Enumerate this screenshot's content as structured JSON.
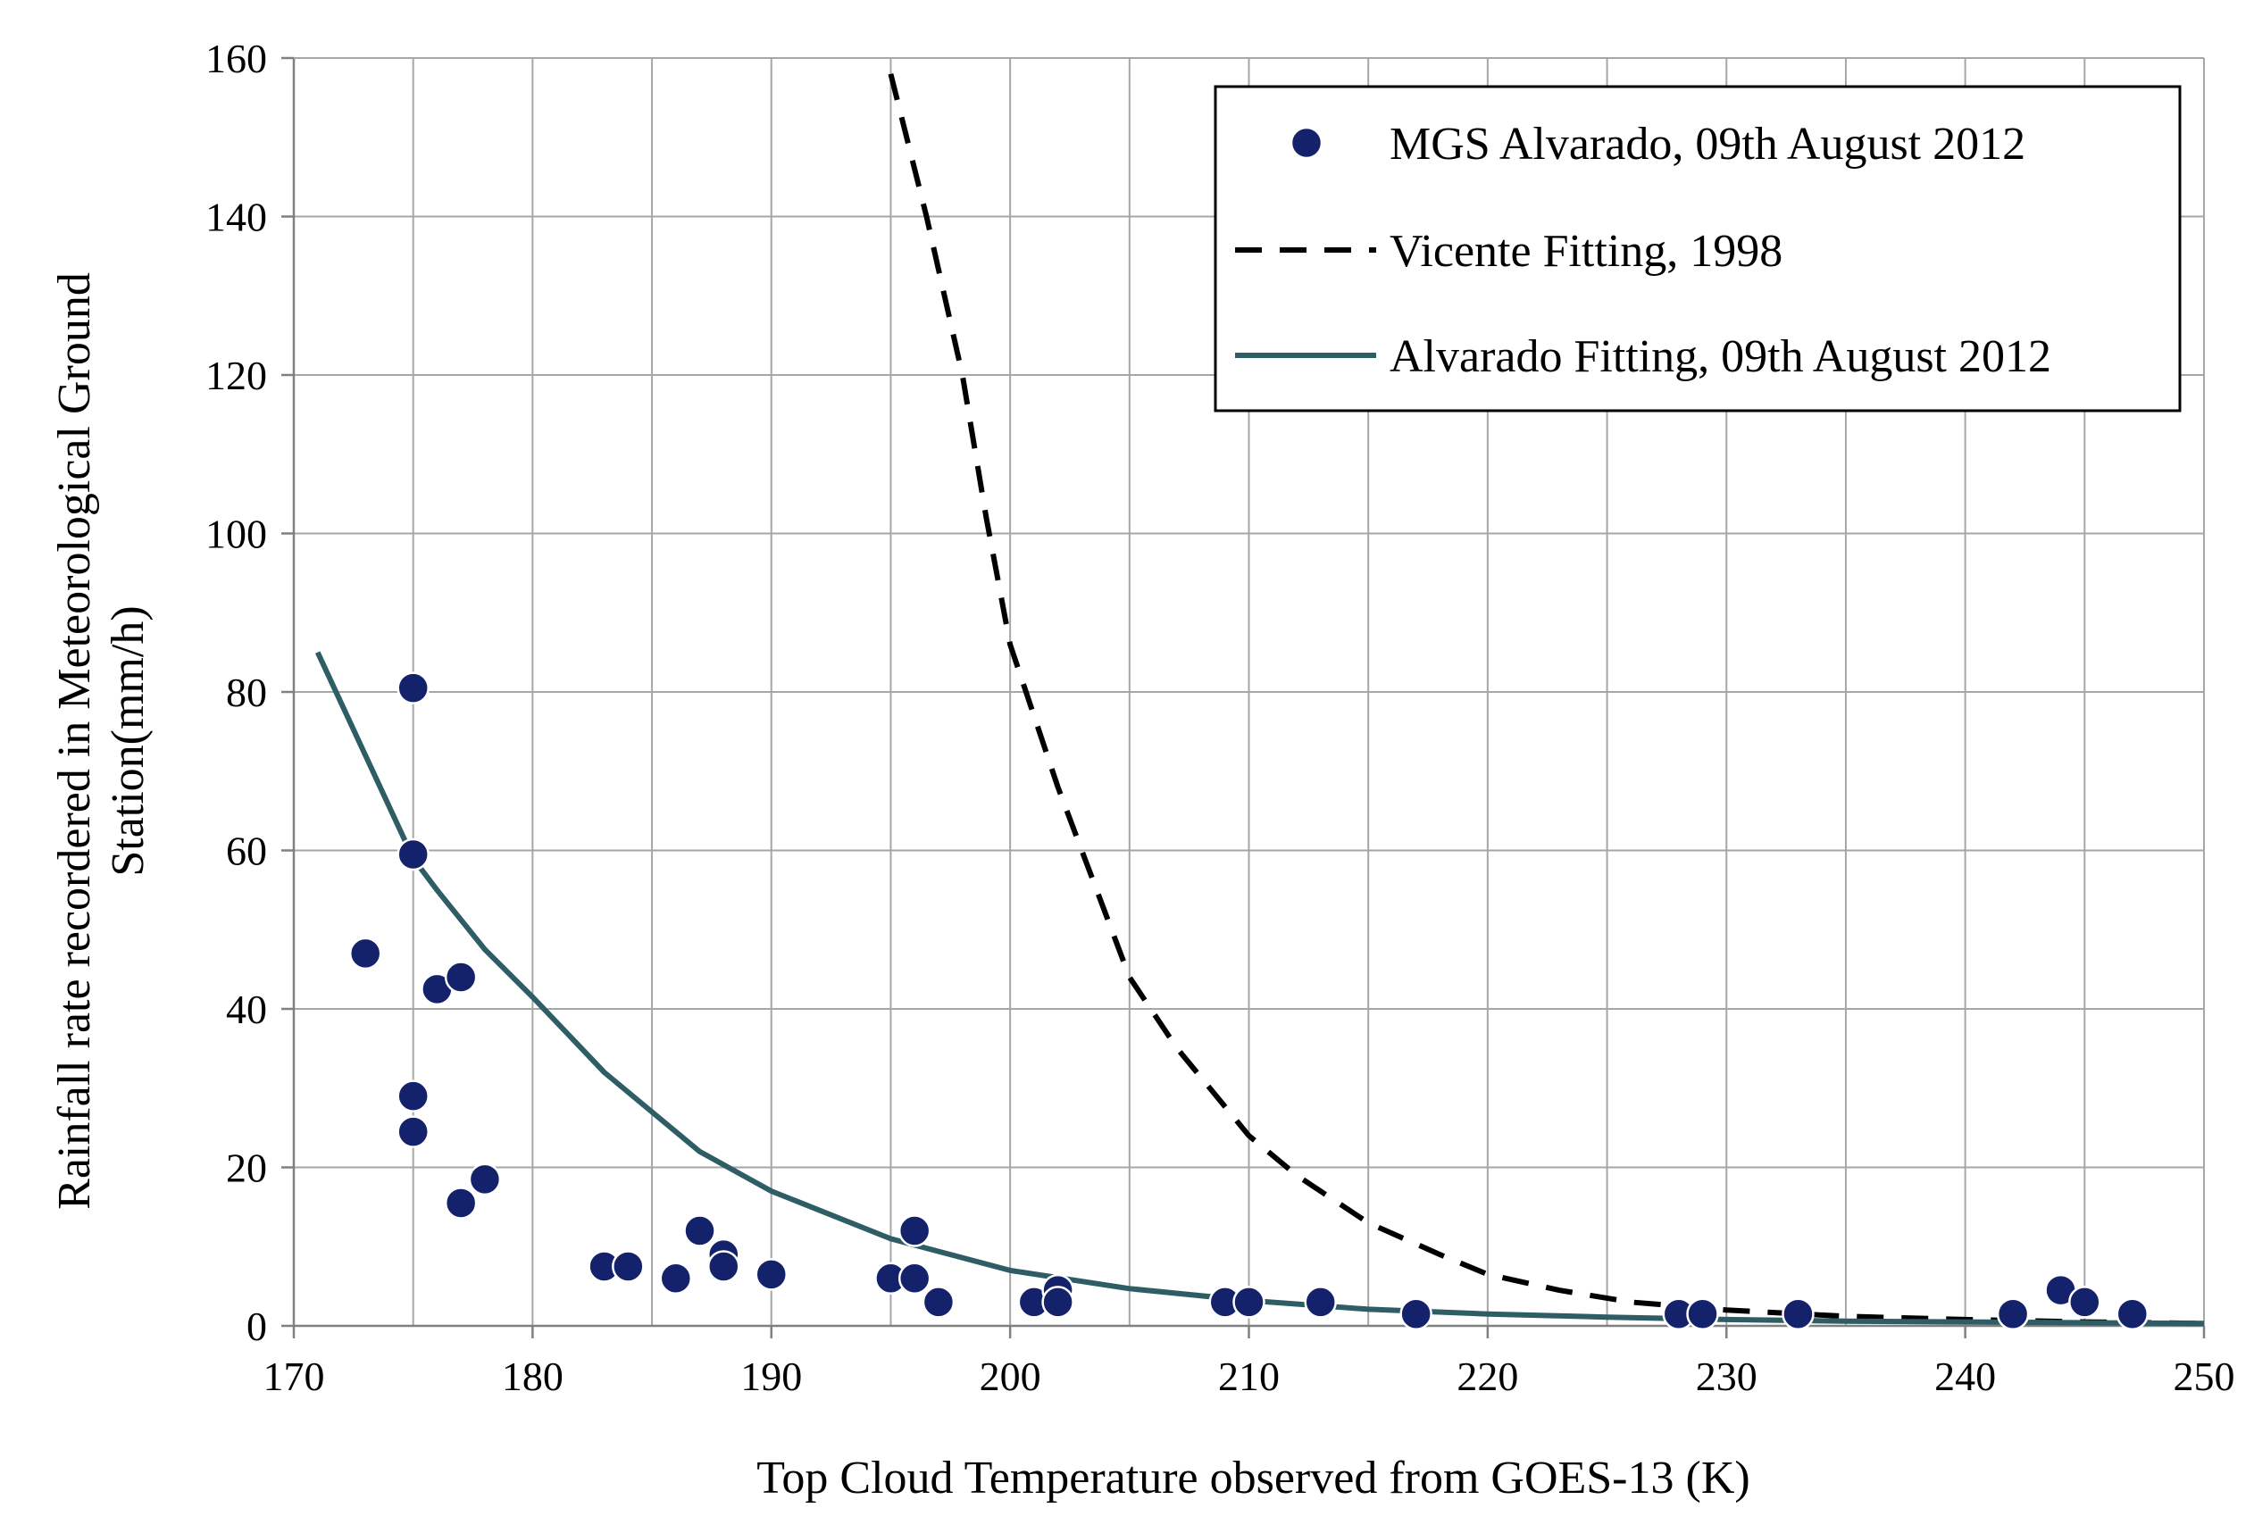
{
  "chart_data": {
    "type": "scatter",
    "xlabel": "Top Cloud Temperature  observed from GOES-13  (K)",
    "ylabel_lines": [
      "Rainfall rate recordered in  Meteorological Ground",
      "Station(mm/h)"
    ],
    "xlim": [
      170,
      250
    ],
    "ylim": [
      0,
      160
    ],
    "x_ticks": [
      170,
      180,
      190,
      200,
      210,
      220,
      230,
      240,
      250
    ],
    "y_ticks": [
      0,
      20,
      40,
      60,
      80,
      100,
      120,
      140,
      160
    ],
    "x_minor_step": 5,
    "grid": true,
    "legend_position": "top-right",
    "series": [
      {
        "name": "MGS Alvarado, 09th August 2012",
        "kind": "scatter",
        "color": "#14216b",
        "points": [
          [
            173,
            47
          ],
          [
            175,
            80.5
          ],
          [
            175,
            59.5
          ],
          [
            175,
            29
          ],
          [
            175,
            24.5
          ],
          [
            176,
            42.5
          ],
          [
            177,
            44
          ],
          [
            177,
            15.5
          ],
          [
            178,
            18.5
          ],
          [
            183,
            7.5
          ],
          [
            184,
            7.5
          ],
          [
            186,
            6
          ],
          [
            187,
            12
          ],
          [
            188,
            9
          ],
          [
            188,
            7.5
          ],
          [
            190,
            6.5
          ],
          [
            195,
            6
          ],
          [
            196,
            12
          ],
          [
            196,
            6
          ],
          [
            197,
            3
          ],
          [
            201,
            3
          ],
          [
            202,
            4.5
          ],
          [
            202,
            3
          ],
          [
            209,
            3
          ],
          [
            210,
            3
          ],
          [
            213,
            3
          ],
          [
            217,
            1.5
          ],
          [
            228,
            1.5
          ],
          [
            229,
            1.5
          ],
          [
            233,
            1.5
          ],
          [
            242,
            1.5
          ],
          [
            244,
            4.5
          ],
          [
            245,
            3
          ],
          [
            247,
            1.5
          ]
        ]
      },
      {
        "name": "Vicente Fitting, 1998",
        "kind": "line",
        "style": "dashed",
        "color": "#000000",
        "points": [
          [
            195,
            158
          ],
          [
            196.5,
            140
          ],
          [
            198,
            120
          ],
          [
            199,
            102
          ],
          [
            200,
            86
          ],
          [
            202,
            68
          ],
          [
            203.5,
            56
          ],
          [
            205,
            44
          ],
          [
            207,
            35
          ],
          [
            210,
            24
          ],
          [
            212,
            19
          ],
          [
            215,
            13
          ],
          [
            218,
            9
          ],
          [
            220,
            6.5
          ],
          [
            223,
            4.5
          ],
          [
            226,
            3
          ],
          [
            230,
            2
          ],
          [
            235,
            1.2
          ],
          [
            240,
            0.8
          ],
          [
            245,
            0.5
          ],
          [
            250,
            0.3
          ]
        ]
      },
      {
        "name": "Alvarado Fitting, 09th August 2012",
        "kind": "line",
        "style": "solid",
        "color": "#2e5d66",
        "points": [
          [
            171,
            85
          ],
          [
            173,
            72
          ],
          [
            175,
            59
          ],
          [
            176,
            55
          ],
          [
            178,
            47.5
          ],
          [
            180,
            41.5
          ],
          [
            183,
            32
          ],
          [
            187,
            22
          ],
          [
            190,
            17
          ],
          [
            195,
            11
          ],
          [
            200,
            7
          ],
          [
            205,
            4.7
          ],
          [
            210,
            3.2
          ],
          [
            215,
            2.1
          ],
          [
            220,
            1.5
          ],
          [
            225,
            1.1
          ],
          [
            230,
            0.8
          ],
          [
            235,
            0.6
          ],
          [
            240,
            0.5
          ],
          [
            245,
            0.4
          ],
          [
            250,
            0.3
          ]
        ]
      }
    ]
  }
}
